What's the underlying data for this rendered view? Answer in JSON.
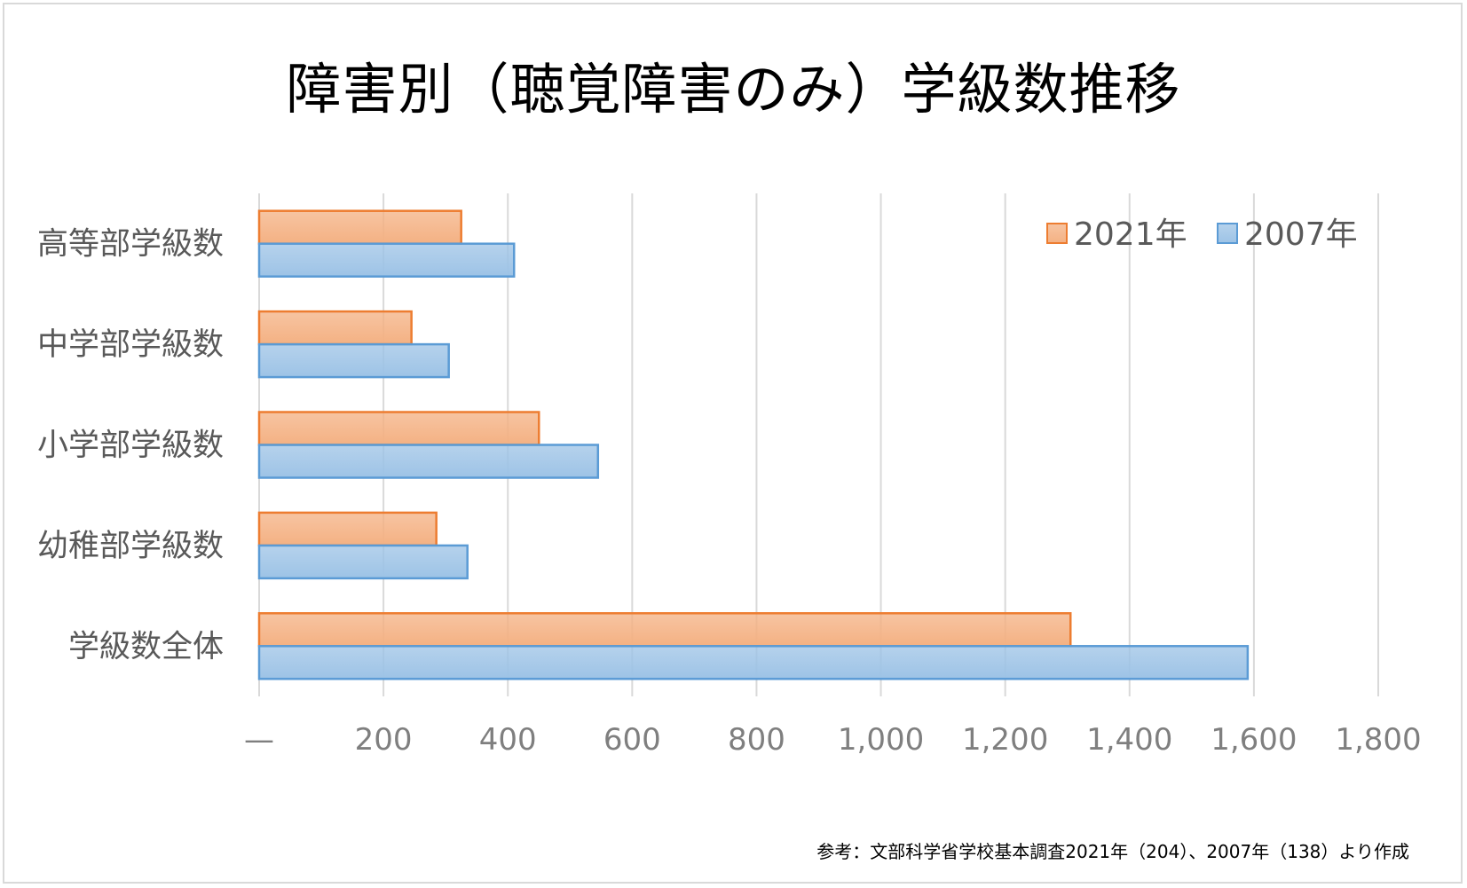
{
  "chart_data": {
    "type": "bar",
    "orientation": "horizontal",
    "title": "障害別（聴覚障害のみ）学級数推移",
    "categories": [
      "高等部学級数",
      "中学部学級数",
      "小学部学級数",
      "幼稚部学級数",
      "学級数全体"
    ],
    "series": [
      {
        "name": "2021年",
        "values": [
          325,
          245,
          450,
          285,
          1305
        ],
        "color": "#f4b183",
        "stroke": "#ed7d31"
      },
      {
        "name": "2007年",
        "values": [
          410,
          305,
          545,
          335,
          1590
        ],
        "color": "#9dc3e6",
        "stroke": "#5b9bd5"
      }
    ],
    "xlim": [
      0,
      1800
    ],
    "xticks": [
      "—",
      "200",
      "400",
      "600",
      "800",
      "1,000",
      "1,200",
      "1,400",
      "1,600",
      "1,800"
    ],
    "grid": true,
    "legend_position": "top-right"
  },
  "source_note": "参考：文部科学省学校基本調査2021年（204）、2007年（138）より作成"
}
